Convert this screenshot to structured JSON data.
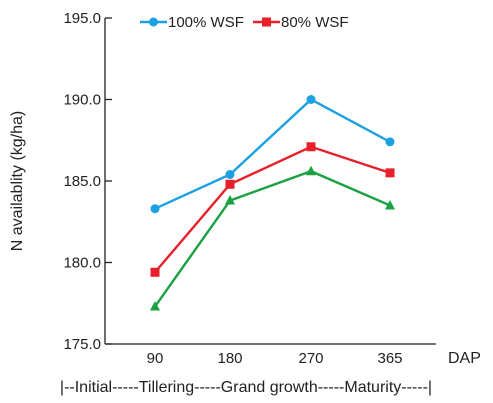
{
  "chart_data": {
    "type": "line",
    "title": "",
    "xlabel": "DAP",
    "ylabel": "N availablity (kg/ha)",
    "categories": [
      "90",
      "180",
      "270",
      "365"
    ],
    "ylim": [
      175.0,
      195.0
    ],
    "y_ticks": [
      "175.0",
      "180.0",
      "185.0",
      "190.0",
      "195.0"
    ],
    "stage_label": "|--Initial-----Tillering-----Grand growth-----Maturity-----|",
    "legend_position": "top",
    "grid": false,
    "series": [
      {
        "name": "100% WSF",
        "color": "#1ba1e2",
        "marker": "circle",
        "values": [
          183.3,
          185.4,
          190.0,
          187.4
        ]
      },
      {
        "name": "80% WSF",
        "color": "#e8202a",
        "marker": "square",
        "values": [
          179.4,
          184.8,
          187.1,
          185.5
        ]
      },
      {
        "name": "",
        "color": "#1aa142",
        "marker": "triangle",
        "values": [
          177.3,
          183.8,
          185.6,
          183.5
        ]
      }
    ]
  }
}
